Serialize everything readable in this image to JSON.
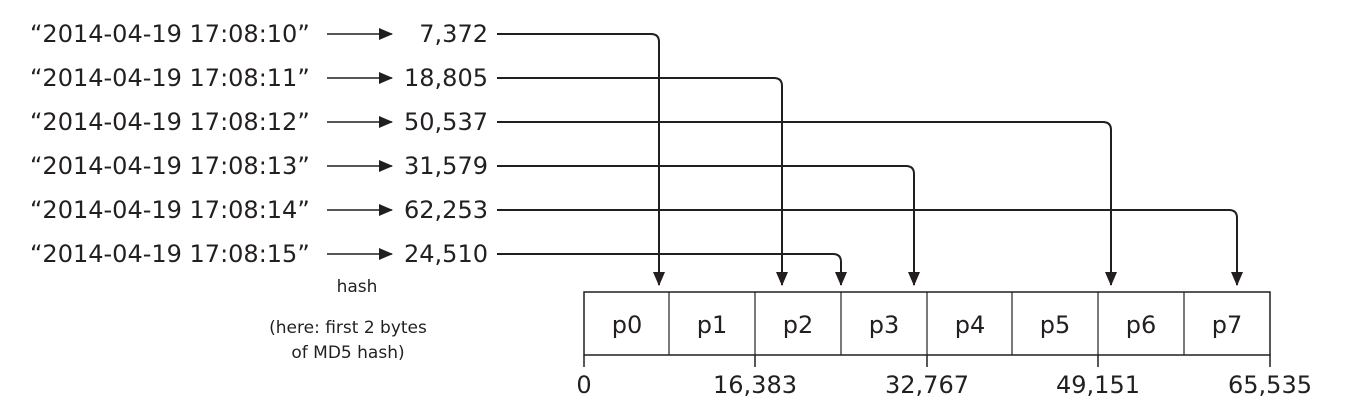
{
  "keys": [
    {
      "timestamp": "“2014-04-19 17:08:10”",
      "hash_value": "7,372",
      "partition": "p0"
    },
    {
      "timestamp": "“2014-04-19 17:08:11”",
      "hash_value": "18,805",
      "partition": "p2"
    },
    {
      "timestamp": "“2014-04-19 17:08:12”",
      "hash_value": "50,537",
      "partition": "p6"
    },
    {
      "timestamp": "“2014-04-19 17:08:13”",
      "hash_value": "31,579",
      "partition": "p3"
    },
    {
      "timestamp": "“2014-04-19 17:08:14”",
      "hash_value": "62,253",
      "partition": "p7"
    },
    {
      "timestamp": "“2014-04-19 17:08:15”",
      "hash_value": "24,510",
      "partition": "p2"
    }
  ],
  "hash_label": "hash",
  "hash_note": [
    "(here: first 2 bytes",
    "of MD5 hash)"
  ],
  "partitions": [
    "p0",
    "p1",
    "p2",
    "p3",
    "p4",
    "p5",
    "p6",
    "p7"
  ],
  "range_labels": [
    "0",
    "16,383",
    "32,767",
    "49,151",
    "65,535"
  ],
  "colors": {
    "ink": "#231f20",
    "background": "#ffffff"
  }
}
